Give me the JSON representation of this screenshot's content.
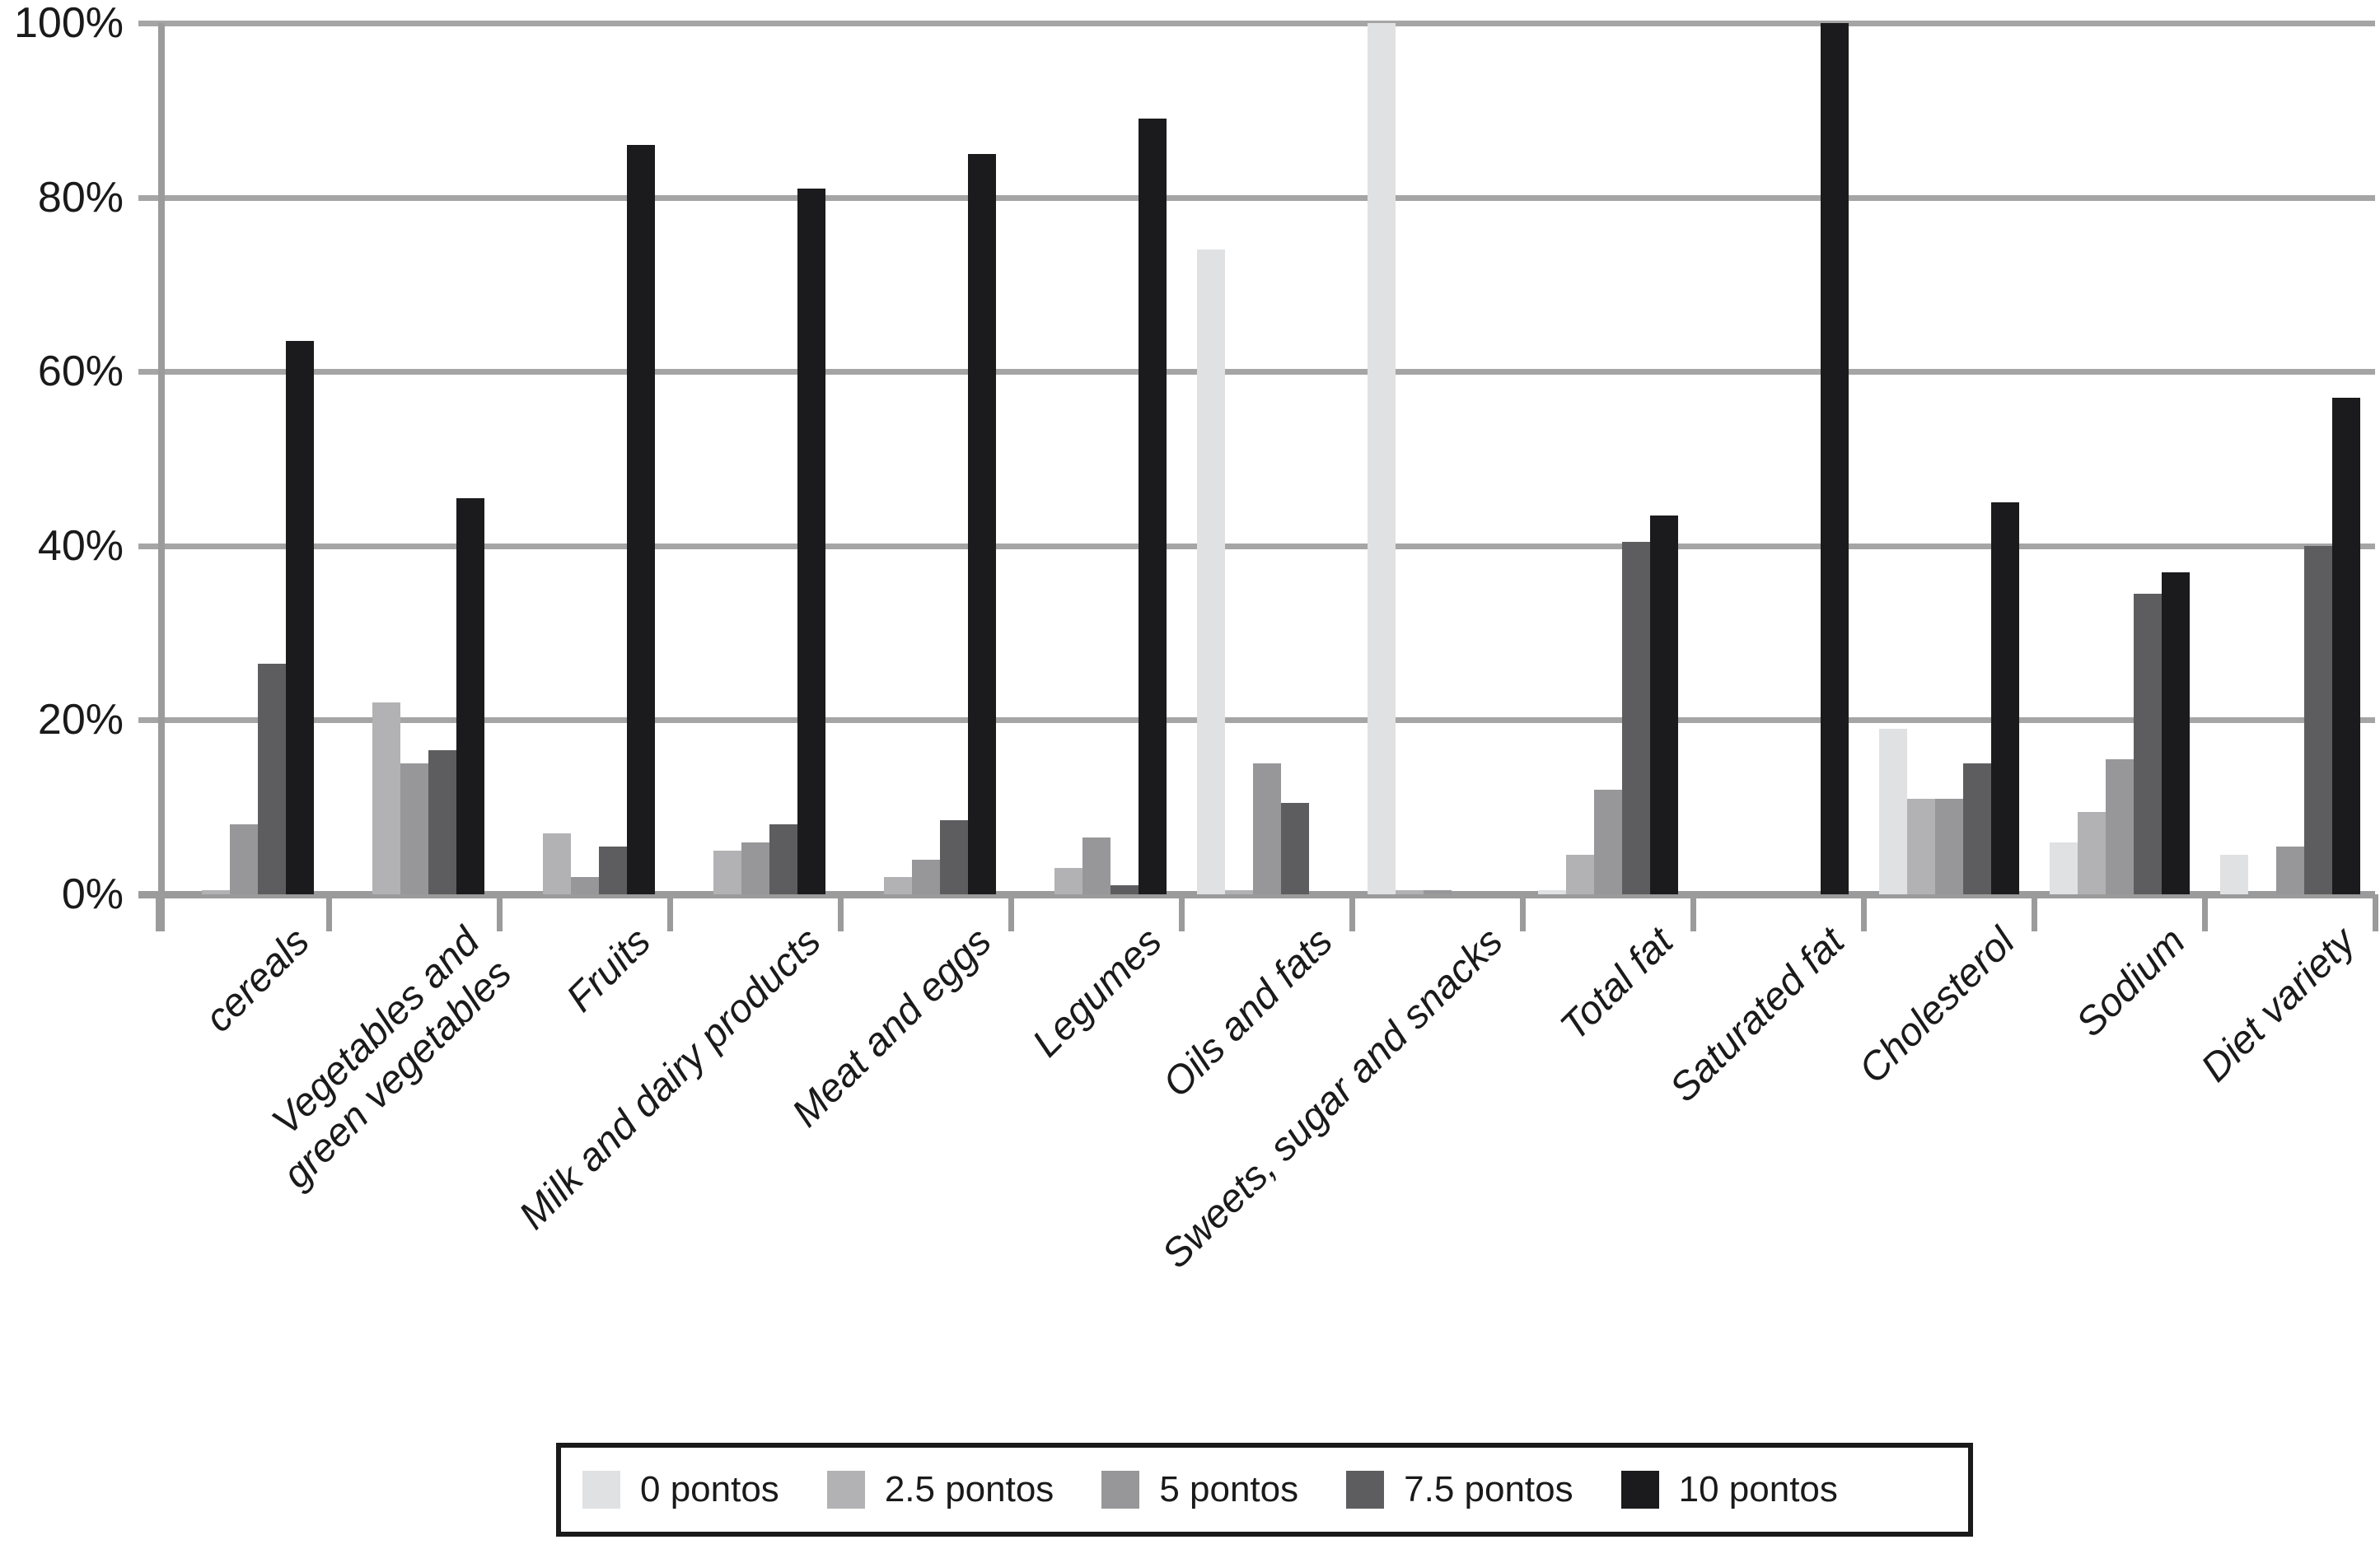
{
  "figure": {
    "background": "#ffffff",
    "text_color": "#1a1a1a"
  },
  "axes": {
    "grid_color": "#a5a5a5",
    "axis_color": "#9b9b9b",
    "grid_on": true
  },
  "legend": {
    "position": "bottom",
    "border_color": "#1a1a1a"
  },
  "chart_data": {
    "type": "bar",
    "title": "",
    "xlabel": "",
    "ylabel": "",
    "ylim": [
      0,
      100
    ],
    "y_ticks": [
      "100%",
      "80%",
      "60%",
      "40%",
      "20%",
      "0%"
    ],
    "grid": true,
    "legend_position": "bottom",
    "categories": [
      "cereals",
      "Vegetables and\ngreen vegetables",
      "Fruits",
      "Milk and dairy products",
      "Meat and eggs",
      "Legumes",
      "Oils and fats",
      "Sweets, sugar and snacks",
      "Total fat",
      "Saturated fat",
      "Cholesterol",
      "Sodium",
      "Diet variety"
    ],
    "series": [
      {
        "name": "0 pontos",
        "color": "#e0e1e3",
        "values": [
          0,
          0,
          0,
          0,
          0,
          0,
          74,
          100,
          0.5,
          0,
          19,
          6,
          4.5
        ]
      },
      {
        "name": "2.5 pontos",
        "color": "#b2b2b4",
        "values": [
          0.5,
          22,
          7,
          5,
          2,
          3,
          0.5,
          0.5,
          4.5,
          0,
          11,
          9.5,
          0
        ]
      },
      {
        "name": "5 pontos",
        "color": "#97979a",
        "values": [
          8,
          15,
          2,
          6,
          4,
          6.5,
          15,
          0.5,
          12,
          0,
          11,
          15.5,
          5.5
        ]
      },
      {
        "name": "7.5 pontos",
        "color": "#5d5d60",
        "values": [
          26.5,
          16.5,
          5.5,
          8,
          8.5,
          1,
          10.5,
          0,
          40.5,
          0,
          15,
          34.5,
          40
        ]
      },
      {
        "name": "10 pontos",
        "color": "#1b1b1d",
        "values": [
          63.5,
          45.5,
          86,
          81,
          85,
          89,
          0,
          0,
          43.5,
          100,
          45,
          37,
          57
        ]
      }
    ]
  }
}
